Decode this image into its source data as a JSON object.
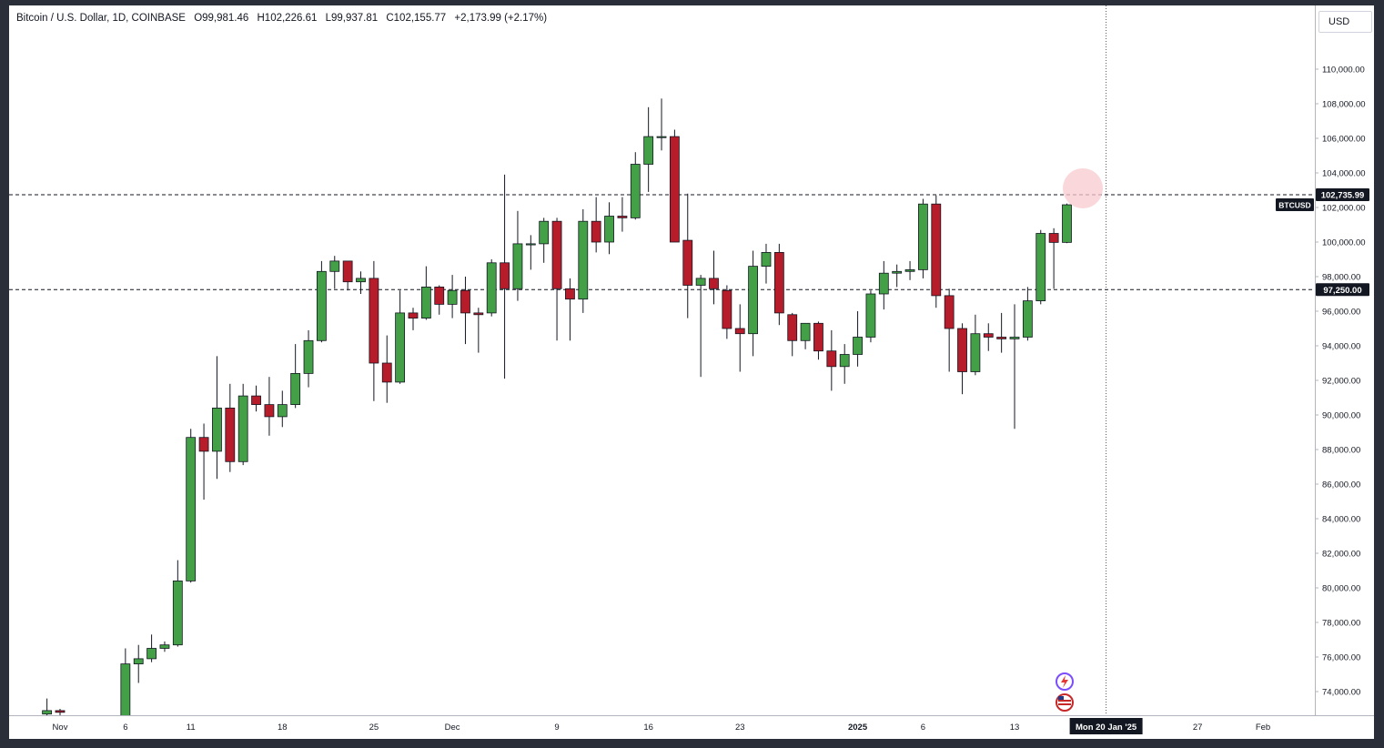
{
  "legend": {
    "symbol": "Bitcoin / U.S. Dollar, 1D, COINBASE",
    "open": "O99,981.46",
    "high": "H102,226.61",
    "low": "L99,937.81",
    "close": "C102,155.77",
    "change": "+2,173.99 (+2.17%)"
  },
  "currency_button": "USD",
  "colors": {
    "up": "#43a047",
    "down": "#b71c2b",
    "wick": "#131722",
    "price_label_bg": "#131722",
    "cursor_highlight": "#f8c9cf"
  },
  "icons": [
    "lightning-icon",
    "us-flag-icon"
  ],
  "crosshair": {
    "date_label": "Mon 20 Jan '25"
  },
  "price_lines": [
    {
      "value": 102735.99,
      "label": "102,735.99",
      "tag": "BTCUSD"
    },
    {
      "value": 97250.0,
      "label": "97,250.00"
    }
  ],
  "chart_data": {
    "type": "candlestick",
    "symbol": "BTCUSD",
    "y_axis": {
      "range": [
        72500,
        111500
      ],
      "ticks": [
        "74,000.00",
        "76,000.00",
        "78,000.00",
        "80,000.00",
        "82,000.00",
        "84,000.00",
        "86,000.00",
        "88,000.00",
        "90,000.00",
        "92,000.00",
        "94,000.00",
        "96,000.00",
        "98,000.00",
        "100,000.00",
        "102,000.00",
        "104,000.00",
        "106,000.00",
        "108,000.00",
        "110,000.00"
      ]
    },
    "x_axis": {
      "labels": [
        {
          "text": "Nov",
          "day": 0
        },
        {
          "text": "6",
          "day": 5
        },
        {
          "text": "11",
          "day": 10
        },
        {
          "text": "18",
          "day": 17
        },
        {
          "text": "25",
          "day": 24
        },
        {
          "text": "Dec",
          "day": 30
        },
        {
          "text": "9",
          "day": 38
        },
        {
          "text": "16",
          "day": 45
        },
        {
          "text": "23",
          "day": 52
        },
        {
          "text": "2025",
          "day": 61
        },
        {
          "text": "6",
          "day": 66
        },
        {
          "text": "13",
          "day": 73
        },
        {
          "text": "27",
          "day": 87
        },
        {
          "text": "Feb",
          "day": 92
        }
      ],
      "crosshair_day": 80
    },
    "candles": [
      {
        "d": -1,
        "o": 72700,
        "h": 73600,
        "l": 72500,
        "c": 72900
      },
      {
        "d": 0,
        "o": 72900,
        "h": 73000,
        "l": 72600,
        "c": 72800
      },
      {
        "d": 5,
        "o": 72500,
        "h": 76500,
        "l": 72400,
        "c": 75600
      },
      {
        "d": 6,
        "o": 75600,
        "h": 76700,
        "l": 74500,
        "c": 75900
      },
      {
        "d": 7,
        "o": 75900,
        "h": 77300,
        "l": 75700,
        "c": 76500
      },
      {
        "d": 8,
        "o": 76500,
        "h": 76900,
        "l": 76300,
        "c": 76700
      },
      {
        "d": 9,
        "o": 76700,
        "h": 81600,
        "l": 76600,
        "c": 80400
      },
      {
        "d": 10,
        "o": 80400,
        "h": 89200,
        "l": 80300,
        "c": 88700
      },
      {
        "d": 11,
        "o": 88700,
        "h": 89500,
        "l": 85100,
        "c": 87900
      },
      {
        "d": 12,
        "o": 87900,
        "h": 93400,
        "l": 86300,
        "c": 90400
      },
      {
        "d": 13,
        "o": 90400,
        "h": 91800,
        "l": 86700,
        "c": 87300
      },
      {
        "d": 14,
        "o": 87300,
        "h": 91800,
        "l": 87100,
        "c": 91100
      },
      {
        "d": 15,
        "o": 91100,
        "h": 91700,
        "l": 90200,
        "c": 90600
      },
      {
        "d": 16,
        "o": 90600,
        "h": 92200,
        "l": 88800,
        "c": 89900
      },
      {
        "d": 17,
        "o": 89900,
        "h": 91400,
        "l": 89300,
        "c": 90600
      },
      {
        "d": 18,
        "o": 90600,
        "h": 94100,
        "l": 90400,
        "c": 92400
      },
      {
        "d": 19,
        "o": 92400,
        "h": 94900,
        "l": 91600,
        "c": 94300
      },
      {
        "d": 20,
        "o": 94300,
        "h": 98900,
        "l": 94200,
        "c": 98300
      },
      {
        "d": 21,
        "o": 98300,
        "h": 99200,
        "l": 97300,
        "c": 98900
      },
      {
        "d": 22,
        "o": 98900,
        "h": 98900,
        "l": 97200,
        "c": 97700
      },
      {
        "d": 23,
        "o": 97700,
        "h": 98300,
        "l": 97000,
        "c": 97900
      },
      {
        "d": 24,
        "o": 97900,
        "h": 98900,
        "l": 90800,
        "c": 93000
      },
      {
        "d": 25,
        "o": 93000,
        "h": 94600,
        "l": 90700,
        "c": 91900
      },
      {
        "d": 26,
        "o": 91900,
        "h": 97200,
        "l": 91800,
        "c": 95900
      },
      {
        "d": 27,
        "o": 95900,
        "h": 96200,
        "l": 94900,
        "c": 95600
      },
      {
        "d": 28,
        "o": 95600,
        "h": 98600,
        "l": 95500,
        "c": 97400
      },
      {
        "d": 29,
        "o": 97400,
        "h": 97500,
        "l": 95800,
        "c": 96400
      },
      {
        "d": 30,
        "o": 96400,
        "h": 98100,
        "l": 95600,
        "c": 97200
      },
      {
        "d": 31,
        "o": 97200,
        "h": 98000,
        "l": 94100,
        "c": 95900
      },
      {
        "d": 32,
        "o": 95900,
        "h": 96200,
        "l": 93600,
        "c": 95800
      },
      {
        "d": 33,
        "o": 95900,
        "h": 99000,
        "l": 95700,
        "c": 98800
      },
      {
        "d": 34,
        "o": 98800,
        "h": 103900,
        "l": 92100,
        "c": 97300
      },
      {
        "d": 35,
        "o": 97300,
        "h": 101800,
        "l": 96600,
        "c": 99900
      },
      {
        "d": 36,
        "o": 99900,
        "h": 100400,
        "l": 98400,
        "c": 99900
      },
      {
        "d": 37,
        "o": 99900,
        "h": 101400,
        "l": 98800,
        "c": 101200
      },
      {
        "d": 38,
        "o": 101200,
        "h": 101400,
        "l": 94300,
        "c": 97300
      },
      {
        "d": 39,
        "o": 97300,
        "h": 97900,
        "l": 94300,
        "c": 96700
      },
      {
        "d": 40,
        "o": 96700,
        "h": 101900,
        "l": 95900,
        "c": 101200
      },
      {
        "d": 41,
        "o": 101200,
        "h": 102600,
        "l": 99400,
        "c": 100000
      },
      {
        "d": 42,
        "o": 100000,
        "h": 102300,
        "l": 99300,
        "c": 101500
      },
      {
        "d": 43,
        "o": 101500,
        "h": 102600,
        "l": 100600,
        "c": 101400
      },
      {
        "d": 44,
        "o": 101400,
        "h": 105200,
        "l": 101300,
        "c": 104500
      },
      {
        "d": 45,
        "o": 104500,
        "h": 107800,
        "l": 102900,
        "c": 106100
      },
      {
        "d": 46,
        "o": 106100,
        "h": 108300,
        "l": 105300,
        "c": 106100
      },
      {
        "d": 47,
        "o": 106100,
        "h": 106500,
        "l": 100000,
        "c": 100000
      },
      {
        "d": 48,
        "o": 100100,
        "h": 102800,
        "l": 95600,
        "c": 97500
      },
      {
        "d": 49,
        "o": 97500,
        "h": 98100,
        "l": 92200,
        "c": 97900
      },
      {
        "d": 50,
        "o": 97900,
        "h": 99500,
        "l": 96400,
        "c": 97300
      },
      {
        "d": 51,
        "o": 97200,
        "h": 97500,
        "l": 94400,
        "c": 95000
      },
      {
        "d": 52,
        "o": 95000,
        "h": 96400,
        "l": 92500,
        "c": 94700
      },
      {
        "d": 53,
        "o": 94700,
        "h": 99500,
        "l": 93400,
        "c": 98600
      },
      {
        "d": 54,
        "o": 98600,
        "h": 99900,
        "l": 97600,
        "c": 99400
      },
      {
        "d": 55,
        "o": 99400,
        "h": 99900,
        "l": 95200,
        "c": 95900
      },
      {
        "d": 56,
        "o": 95800,
        "h": 95900,
        "l": 93400,
        "c": 94300
      },
      {
        "d": 57,
        "o": 94300,
        "h": 95300,
        "l": 93800,
        "c": 95300
      },
      {
        "d": 58,
        "o": 95300,
        "h": 95400,
        "l": 93200,
        "c": 93700
      },
      {
        "d": 59,
        "o": 93700,
        "h": 94900,
        "l": 91400,
        "c": 92800
      },
      {
        "d": 60,
        "o": 92800,
        "h": 94100,
        "l": 91800,
        "c": 93500
      },
      {
        "d": 61,
        "o": 93500,
        "h": 96000,
        "l": 92800,
        "c": 94500
      },
      {
        "d": 62,
        "o": 94500,
        "h": 97200,
        "l": 94200,
        "c": 97000
      },
      {
        "d": 63,
        "o": 97000,
        "h": 98900,
        "l": 96100,
        "c": 98200
      },
      {
        "d": 64,
        "o": 98200,
        "h": 98700,
        "l": 97400,
        "c": 98300
      },
      {
        "d": 65,
        "o": 98300,
        "h": 98900,
        "l": 97800,
        "c": 98400
      },
      {
        "d": 66,
        "o": 98400,
        "h": 102500,
        "l": 97900,
        "c": 102200
      },
      {
        "d": 67,
        "o": 102200,
        "h": 102700,
        "l": 96200,
        "c": 96900
      },
      {
        "d": 68,
        "o": 96900,
        "h": 97300,
        "l": 92500,
        "c": 95000
      },
      {
        "d": 69,
        "o": 95000,
        "h": 95300,
        "l": 91200,
        "c": 92500
      },
      {
        "d": 70,
        "o": 92500,
        "h": 95800,
        "l": 92300,
        "c": 94700
      },
      {
        "d": 71,
        "o": 94700,
        "h": 95300,
        "l": 93700,
        "c": 94500
      },
      {
        "d": 72,
        "o": 94500,
        "h": 95900,
        "l": 93600,
        "c": 94400
      },
      {
        "d": 73,
        "o": 94400,
        "h": 96400,
        "l": 89200,
        "c": 94500
      },
      {
        "d": 74,
        "o": 94500,
        "h": 97400,
        "l": 94300,
        "c": 96600
      },
      {
        "d": 75,
        "o": 96600,
        "h": 100700,
        "l": 96400,
        "c": 100500
      },
      {
        "d": 76,
        "o": 100500,
        "h": 100800,
        "l": 97300,
        "c": 99980
      },
      {
        "d": 77,
        "o": 99981,
        "h": 102227,
        "l": 99938,
        "c": 102156
      }
    ]
  }
}
